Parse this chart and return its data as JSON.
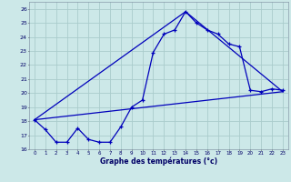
{
  "xlabel": "Graphe des températures (°c)",
  "background_color": "#cce8e8",
  "grid_color": "#aacccc",
  "line_color": "#0000bb",
  "xlim": [
    -0.5,
    23.5
  ],
  "ylim": [
    16,
    26.5
  ],
  "x_ticks": [
    0,
    1,
    2,
    3,
    4,
    5,
    6,
    7,
    8,
    9,
    10,
    11,
    12,
    13,
    14,
    15,
    16,
    17,
    18,
    19,
    20,
    21,
    22,
    23
  ],
  "y_ticks": [
    16,
    17,
    18,
    19,
    20,
    21,
    22,
    23,
    24,
    25,
    26
  ],
  "series1_x": [
    0,
    1,
    2,
    3,
    4,
    5,
    6,
    7,
    8,
    9,
    10,
    11,
    12,
    13,
    14,
    15,
    16,
    17,
    18,
    19,
    20,
    21,
    22,
    23
  ],
  "series1_y": [
    18.1,
    17.4,
    16.5,
    16.5,
    17.5,
    16.7,
    16.5,
    16.5,
    17.6,
    19.0,
    19.5,
    22.9,
    24.2,
    24.5,
    25.8,
    25.0,
    24.5,
    24.2,
    23.5,
    23.3,
    20.2,
    20.1,
    20.3,
    20.2
  ],
  "series2_x": [
    0,
    23
  ],
  "series2_y": [
    18.1,
    20.1
  ],
  "series3_x": [
    0,
    14,
    23
  ],
  "series3_y": [
    18.1,
    25.8,
    20.1
  ]
}
